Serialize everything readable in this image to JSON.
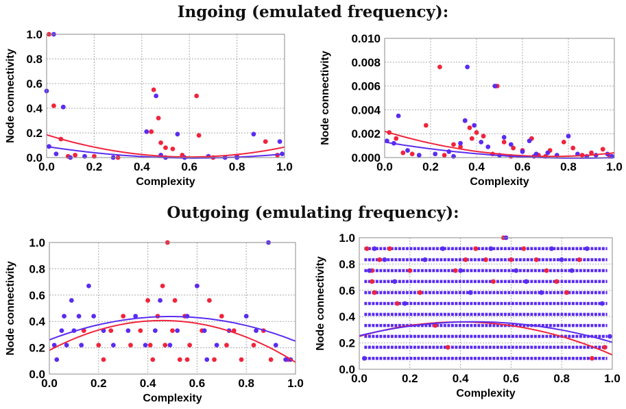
{
  "section_titles": {
    "ingoing": "Ingoing (emulated frequency):",
    "outgoing": "Outgoing (emulating frequency):"
  },
  "colors": {
    "red": "#f0243c",
    "blue": "#5a2cf0",
    "grid": "#a8a8a8"
  },
  "chart_data": [
    {
      "type": "scatter",
      "title": "",
      "xlabel": "Complexity",
      "ylabel": "Node connectivity",
      "xlim": [
        0,
        1
      ],
      "ylim": [
        0,
        1
      ],
      "xticks": [
        "0.0",
        "0.2",
        "0.4",
        "0.6",
        "0.8",
        "1.0"
      ],
      "yticks": [
        "0.0",
        "0.2",
        "0.4",
        "0.6",
        "0.8",
        "1.0"
      ],
      "grid": true,
      "series": [
        {
          "color": "#f0243c",
          "points": [
            [
              0.01,
              1.0
            ],
            [
              0.03,
              0.42
            ],
            [
              0.06,
              0.15
            ],
            [
              0.09,
              0.01
            ],
            [
              0.12,
              0.02
            ],
            [
              0.2,
              0.01
            ],
            [
              0.3,
              0.0
            ],
            [
              0.44,
              0.21
            ],
            [
              0.45,
              0.55
            ],
            [
              0.47,
              0.32
            ],
            [
              0.48,
              0.12
            ],
            [
              0.5,
              0.08
            ],
            [
              0.53,
              0.07
            ],
            [
              0.57,
              0.02
            ],
            [
              0.63,
              0.5
            ],
            [
              0.64,
              0.18
            ],
            [
              0.7,
              0.0
            ],
            [
              0.8,
              0.01
            ],
            [
              0.92,
              0.13
            ],
            [
              0.97,
              0.02
            ]
          ],
          "fit": [
            0.185,
            -0.6,
            0.5
          ]
        },
        {
          "color": "#5a2cf0",
          "points": [
            [
              0.0,
              0.54
            ],
            [
              0.01,
              0.09
            ],
            [
              0.03,
              1.0
            ],
            [
              0.04,
              0.03
            ],
            [
              0.07,
              0.41
            ],
            [
              0.1,
              0.0
            ],
            [
              0.16,
              0.01
            ],
            [
              0.28,
              0.0
            ],
            [
              0.42,
              0.21
            ],
            [
              0.46,
              0.5
            ],
            [
              0.48,
              0.02
            ],
            [
              0.55,
              0.19
            ],
            [
              0.58,
              0.0
            ],
            [
              0.68,
              0.01
            ],
            [
              0.75,
              0.0
            ],
            [
              0.87,
              0.19
            ],
            [
              0.98,
              0.13
            ],
            [
              0.99,
              0.03
            ],
            [
              0.8,
              0.0
            ],
            [
              0.5,
              0.0
            ]
          ],
          "fit": [
            0.09,
            -0.3,
            0.24
          ]
        }
      ]
    },
    {
      "type": "scatter",
      "title": "",
      "xlabel": "Complexity",
      "ylabel": "Node connectivity",
      "xlim": [
        0,
        1
      ],
      "ylim": [
        0,
        0.01
      ],
      "xticks": [
        "0.0",
        "0.2",
        "0.4",
        "0.6",
        "0.8",
        "1.0"
      ],
      "yticks": [
        "0.000",
        "0.002",
        "0.004",
        "0.006",
        "0.008",
        "0.010"
      ],
      "grid": true,
      "series": [
        {
          "color": "#f0243c",
          "points": [
            [
              0.02,
              0.0021
            ],
            [
              0.05,
              0.0016
            ],
            [
              0.08,
              0.0004
            ],
            [
              0.12,
              0.0003
            ],
            [
              0.18,
              0.0027
            ],
            [
              0.24,
              0.0076
            ],
            [
              0.3,
              0.0011
            ],
            [
              0.33,
              0.0009
            ],
            [
              0.35,
              0.0031
            ],
            [
              0.37,
              0.0025
            ],
            [
              0.38,
              0.0016
            ],
            [
              0.4,
              0.0021
            ],
            [
              0.43,
              0.0018
            ],
            [
              0.47,
              0.0003
            ],
            [
              0.49,
              0.006
            ],
            [
              0.52,
              0.0013
            ],
            [
              0.56,
              0.0008
            ],
            [
              0.6,
              0.0006
            ],
            [
              0.64,
              0.0016
            ],
            [
              0.67,
              0.0002
            ],
            [
              0.72,
              0.0006
            ],
            [
              0.78,
              0.0013
            ],
            [
              0.82,
              0.0008
            ],
            [
              0.86,
              0.0002
            ],
            [
              0.9,
              0.0004
            ],
            [
              0.95,
              0.0007
            ],
            [
              0.98,
              0.0001
            ],
            [
              0.26,
              0.0002
            ],
            [
              0.55,
              0.0001
            ],
            [
              0.7,
              0.0001
            ]
          ],
          "fit": [
            0.0022,
            -0.0058,
            0.004
          ]
        },
        {
          "color": "#5a2cf0",
          "points": [
            [
              0.01,
              0.0014
            ],
            [
              0.04,
              0.0012
            ],
            [
              0.06,
              0.0035
            ],
            [
              0.1,
              0.0006
            ],
            [
              0.15,
              0.0002
            ],
            [
              0.22,
              0.0003
            ],
            [
              0.28,
              0.0005
            ],
            [
              0.33,
              0.0012
            ],
            [
              0.35,
              0.0031
            ],
            [
              0.36,
              0.0076
            ],
            [
              0.39,
              0.0027
            ],
            [
              0.42,
              0.0013
            ],
            [
              0.45,
              0.0009
            ],
            [
              0.48,
              0.006
            ],
            [
              0.52,
              0.0017
            ],
            [
              0.55,
              0.0011
            ],
            [
              0.6,
              0.0005
            ],
            [
              0.63,
              0.0014
            ],
            [
              0.66,
              0.0003
            ],
            [
              0.71,
              0.0004
            ],
            [
              0.75,
              0.0002
            ],
            [
              0.8,
              0.0018
            ],
            [
              0.84,
              0.0003
            ],
            [
              0.88,
              0.0001
            ],
            [
              0.92,
              0.0002
            ],
            [
              0.97,
              0.0003
            ],
            [
              0.99,
              0.0001
            ],
            [
              0.5,
              0.0002
            ],
            [
              0.3,
              0.0001
            ],
            [
              0.65,
              0.0001
            ]
          ],
          "fit": [
            0.0013,
            -0.0032,
            0.0019
          ]
        }
      ]
    },
    {
      "type": "scatter",
      "title": "",
      "xlabel": "Complexity",
      "ylabel": "Node connectivity",
      "xlim": [
        0,
        1
      ],
      "ylim": [
        0,
        1
      ],
      "xticks": [
        "0.0",
        "0.2",
        "0.4",
        "0.6",
        "0.8",
        "1.0"
      ],
      "yticks": [
        "0.0",
        "0.2",
        "0.4",
        "0.6",
        "0.8",
        "1.0"
      ],
      "grid": true,
      "series": [
        {
          "color": "#f0243c",
          "points": [
            [
              0.14,
              0.33
            ],
            [
              0.2,
              0.22
            ],
            [
              0.22,
              0.11
            ],
            [
              0.25,
              0.33
            ],
            [
              0.3,
              0.44
            ],
            [
              0.33,
              0.22
            ],
            [
              0.37,
              0.33
            ],
            [
              0.4,
              0.56
            ],
            [
              0.42,
              0.11
            ],
            [
              0.44,
              0.44
            ],
            [
              0.46,
              0.67
            ],
            [
              0.47,
              0.22
            ],
            [
              0.48,
              1.0
            ],
            [
              0.5,
              0.33
            ],
            [
              0.51,
              0.56
            ],
            [
              0.53,
              0.11
            ],
            [
              0.55,
              0.44
            ],
            [
              0.57,
              0.22
            ],
            [
              0.6,
              0.67
            ],
            [
              0.62,
              0.33
            ],
            [
              0.65,
              0.56
            ],
            [
              0.67,
              0.11
            ],
            [
              0.7,
              0.44
            ],
            [
              0.72,
              0.22
            ],
            [
              0.75,
              0.33
            ],
            [
              0.78,
              0.11
            ],
            [
              0.83,
              0.22
            ],
            [
              0.87,
              0.33
            ],
            [
              0.9,
              0.11
            ],
            [
              0.97,
              0.11
            ],
            [
              0.41,
              0.22
            ],
            [
              0.56,
              0.11
            ]
          ],
          "fit": [
            0.18,
            0.99,
            -1.08
          ]
        },
        {
          "color": "#5a2cf0",
          "points": [
            [
              0.02,
              0.22
            ],
            [
              0.03,
              0.11
            ],
            [
              0.05,
              0.33
            ],
            [
              0.06,
              0.44
            ],
            [
              0.07,
              0.22
            ],
            [
              0.09,
              0.56
            ],
            [
              0.1,
              0.33
            ],
            [
              0.12,
              0.44
            ],
            [
              0.13,
              0.22
            ],
            [
              0.16,
              0.67
            ],
            [
              0.18,
              0.44
            ],
            [
              0.22,
              0.33
            ],
            [
              0.26,
              0.22
            ],
            [
              0.32,
              0.33
            ],
            [
              0.35,
              0.44
            ],
            [
              0.39,
              0.22
            ],
            [
              0.43,
              0.33
            ],
            [
              0.45,
              0.56
            ],
            [
              0.49,
              0.22
            ],
            [
              0.52,
              0.33
            ],
            [
              0.56,
              0.44
            ],
            [
              0.6,
              0.67
            ],
            [
              0.63,
              0.33
            ],
            [
              0.68,
              0.22
            ],
            [
              0.73,
              0.33
            ],
            [
              0.8,
              0.44
            ],
            [
              0.84,
              0.33
            ],
            [
              0.89,
              1.0
            ],
            [
              0.92,
              0.22
            ],
            [
              0.96,
              0.11
            ],
            [
              0.98,
              0.11
            ],
            [
              0.64,
              0.11
            ]
          ],
          "fit": [
            0.26,
            0.72,
            -0.73
          ]
        }
      ]
    },
    {
      "type": "scatter",
      "title": "",
      "xlabel": "Complexity",
      "ylabel": "Node connectivity",
      "xlim": [
        0,
        1
      ],
      "ylim": [
        0,
        1
      ],
      "xticks": [
        "0.0",
        "0.2",
        "0.4",
        "0.6",
        "0.8",
        "1.0"
      ],
      "yticks": [
        "0.0",
        "0.2",
        "0.4",
        "0.6",
        "0.8",
        "1.0"
      ],
      "grid": true,
      "band_levels": [
        0.083,
        0.167,
        0.25,
        0.333,
        0.417,
        0.5,
        0.583,
        0.667,
        0.75,
        0.833,
        0.917
      ],
      "series": [
        {
          "color": "#f0243c",
          "points": [
            [
              0.03,
              0.917
            ],
            [
              0.05,
              0.75
            ],
            [
              0.05,
              0.667
            ],
            [
              0.06,
              0.583
            ],
            [
              0.08,
              0.833
            ],
            [
              0.12,
              0.917
            ],
            [
              0.15,
              0.5
            ],
            [
              0.2,
              0.75
            ],
            [
              0.24,
              0.583
            ],
            [
              0.3,
              0.333
            ],
            [
              0.35,
              0.167
            ],
            [
              0.38,
              0.75
            ],
            [
              0.42,
              0.833
            ],
            [
              0.46,
              0.917
            ],
            [
              0.5,
              0.833
            ],
            [
              0.53,
              0.667
            ],
            [
              0.57,
              1.0
            ],
            [
              0.6,
              0.833
            ],
            [
              0.65,
              0.917
            ],
            [
              0.7,
              0.833
            ],
            [
              0.74,
              0.75
            ],
            [
              0.78,
              0.667
            ],
            [
              0.82,
              0.583
            ],
            [
              0.87,
              0.833
            ],
            [
              0.92,
              0.083
            ],
            [
              0.97,
              0.167
            ]
          ],
          "fit": [
            0.25,
            0.55,
            -0.69
          ]
        },
        {
          "color": "#5a2cf0",
          "points": [
            [
              0.02,
              0.083
            ],
            [
              0.04,
              0.75
            ],
            [
              0.06,
              0.917
            ],
            [
              0.1,
              0.833
            ],
            [
              0.14,
              0.667
            ],
            [
              0.18,
              0.5
            ],
            [
              0.26,
              0.833
            ],
            [
              0.33,
              0.917
            ],
            [
              0.4,
              0.75
            ],
            [
              0.44,
              0.583
            ],
            [
              0.52,
              0.917
            ],
            [
              0.58,
              1.0
            ],
            [
              0.62,
              0.75
            ],
            [
              0.66,
              0.667
            ],
            [
              0.72,
              0.583
            ],
            [
              0.76,
              0.917
            ],
            [
              0.8,
              0.833
            ],
            [
              0.84,
              0.75
            ],
            [
              0.9,
              0.917
            ],
            [
              0.96,
              0.5
            ],
            [
              0.99,
              0.25
            ]
          ],
          "fit": [
            0.255,
            0.47,
            -0.52
          ]
        }
      ]
    }
  ]
}
